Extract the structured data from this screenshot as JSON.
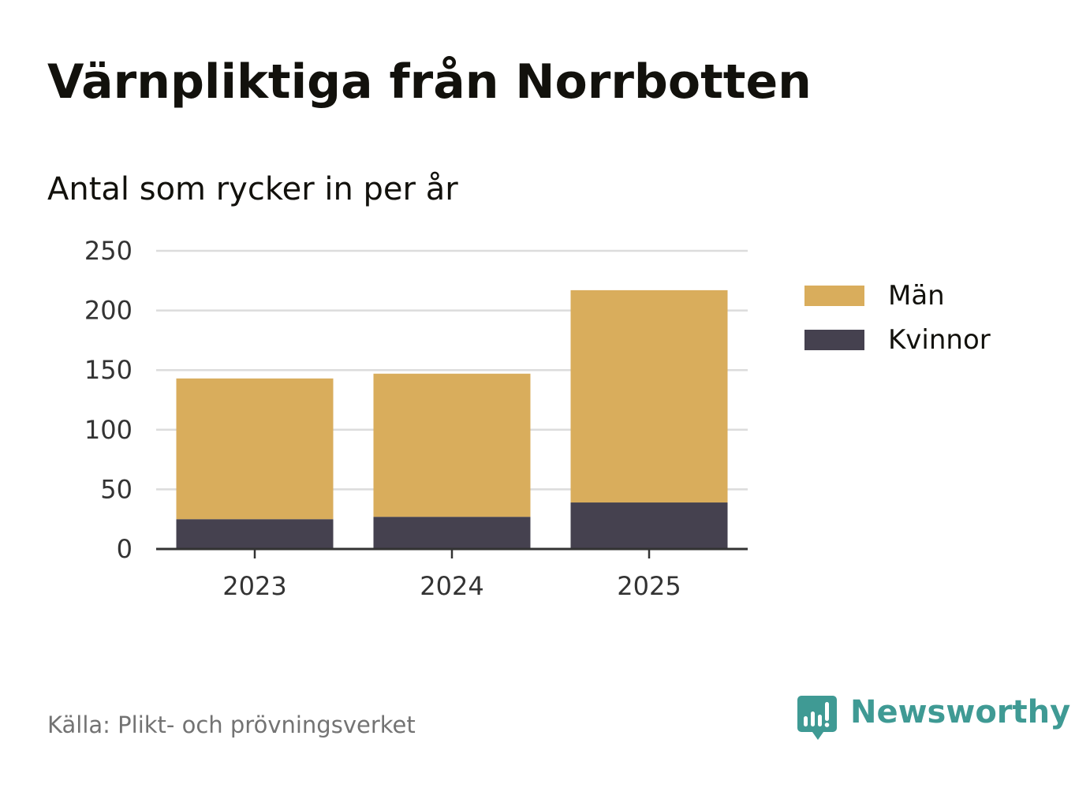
{
  "chart_data": {
    "type": "bar",
    "stacked": true,
    "title": "Värnpliktiga från Norrbotten",
    "subtitle": "Antal som rycker in per år",
    "categories": [
      "2023",
      "2024",
      "2025"
    ],
    "series": [
      {
        "name": "Kvinnor",
        "values": [
          25,
          27,
          39
        ],
        "color": "#45414f"
      },
      {
        "name": "Män",
        "values": [
          118,
          120,
          178
        ],
        "color": "#d9ad5c"
      }
    ],
    "legend_order": [
      "Män",
      "Kvinnor"
    ],
    "xlabel": "",
    "ylabel": "",
    "ylim": [
      0,
      250
    ],
    "yticks": [
      0,
      50,
      100,
      150,
      200,
      250
    ],
    "grid": true,
    "legend_position": "right"
  },
  "source": "Källa: Plikt- och prövningsverket",
  "brand": {
    "name": "Newsworthy",
    "icon": "newsworthy-logo-icon",
    "color": "#3f9a94"
  },
  "colors": {
    "text": "#12110c",
    "grid": "#dcdcdc",
    "axis": "#333333",
    "source_text": "#737373"
  }
}
